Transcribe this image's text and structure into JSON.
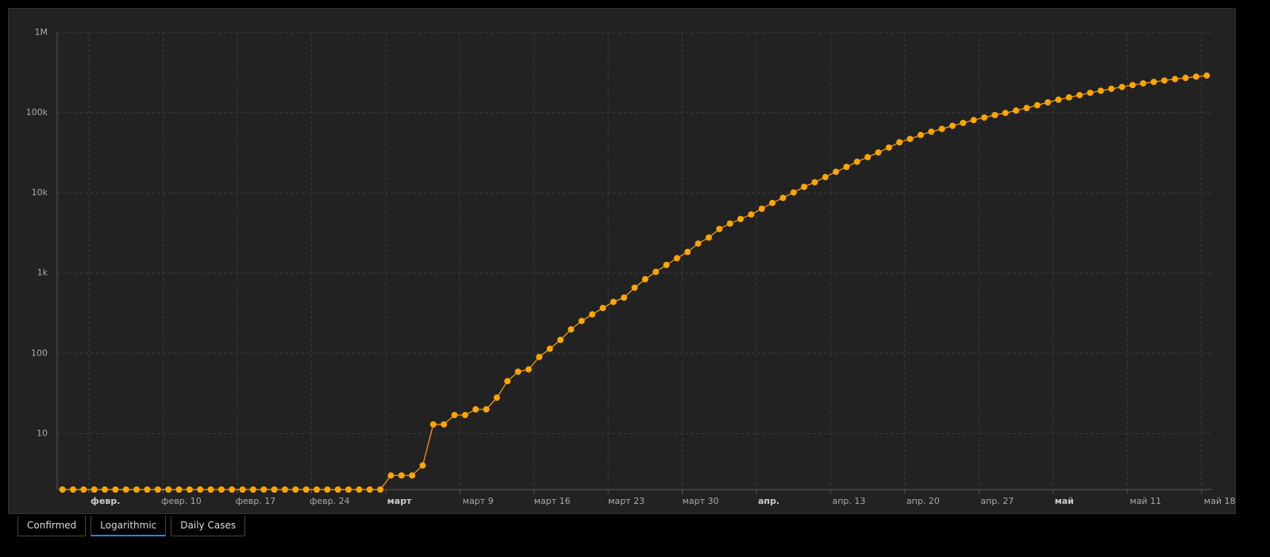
{
  "chart_data": {
    "type": "line",
    "log_scale": true,
    "grid": true,
    "color": "#ffa500",
    "x": [
      "01-31",
      "02-01",
      "02-02",
      "02-03",
      "02-04",
      "02-05",
      "02-06",
      "02-07",
      "02-08",
      "02-09",
      "02-10",
      "02-11",
      "02-12",
      "02-13",
      "02-14",
      "02-15",
      "02-16",
      "02-17",
      "02-18",
      "02-19",
      "02-20",
      "02-21",
      "02-22",
      "02-23",
      "02-24",
      "02-25",
      "02-26",
      "02-27",
      "02-28",
      "02-29",
      "03-01",
      "03-02",
      "03-03",
      "03-04",
      "03-05",
      "03-06",
      "03-07",
      "03-08",
      "03-09",
      "03-10",
      "03-11",
      "03-12",
      "03-13",
      "03-14",
      "03-15",
      "03-16",
      "03-17",
      "03-18",
      "03-19",
      "03-20",
      "03-21",
      "03-22",
      "03-23",
      "03-24",
      "03-25",
      "03-26",
      "03-27",
      "03-28",
      "03-29",
      "03-30",
      "03-31",
      "04-01",
      "04-02",
      "04-03",
      "04-04",
      "04-05",
      "04-06",
      "04-07",
      "04-08",
      "04-09",
      "04-10",
      "04-11",
      "04-12",
      "04-13",
      "04-14",
      "04-15",
      "04-16",
      "04-17",
      "04-18",
      "04-19",
      "04-20",
      "04-21",
      "04-22",
      "04-23",
      "04-24",
      "04-25",
      "04-26",
      "04-27",
      "04-28",
      "04-29",
      "04-30",
      "05-01",
      "05-02",
      "05-03",
      "05-04",
      "05-05",
      "05-06",
      "05-07",
      "05-08",
      "05-09",
      "05-10",
      "05-11",
      "05-12",
      "05-13",
      "05-14",
      "05-15",
      "05-16",
      "05-17",
      "05-18"
    ],
    "values": [
      2,
      2,
      2,
      2,
      2,
      2,
      2,
      2,
      2,
      2,
      2,
      2,
      2,
      2,
      2,
      2,
      2,
      2,
      2,
      2,
      2,
      2,
      2,
      2,
      2,
      2,
      2,
      2,
      2,
      2,
      2,
      3,
      3,
      3,
      4,
      13,
      13,
      17,
      17,
      20,
      20,
      28,
      45,
      59,
      63,
      90,
      114,
      147,
      199,
      253,
      306,
      367,
      438,
      495,
      658,
      840,
      1036,
      1264,
      1534,
      1836,
      2337,
      2777,
      3548,
      4149,
      4731,
      5389,
      6343,
      7497,
      8672,
      10131,
      11917,
      13584,
      15770,
      18328,
      21102,
      24490,
      27938,
      32008,
      36793,
      42853,
      47121,
      52763,
      57999,
      62773,
      68622,
      74588,
      80949,
      87147,
      93558,
      99399,
      106498,
      114431,
      124054,
      134686,
      145268,
      155370,
      165929,
      177160,
      187859,
      198676,
      209688,
      221344,
      232243,
      242271,
      252245,
      262843,
      272043,
      281752,
      290678
    ],
    "xlim": [
      "01-31",
      "05-19"
    ],
    "xticks": [
      {
        "value": "02-03",
        "label": "февр."
      },
      {
        "value": "02-10",
        "label": "февр. 10"
      },
      {
        "value": "02-17",
        "label": "февр. 17"
      },
      {
        "value": "02-24",
        "label": "февр. 24"
      },
      {
        "value": "03-02",
        "label": "март"
      },
      {
        "value": "03-09",
        "label": "март 9"
      },
      {
        "value": "03-16",
        "label": "март 16"
      },
      {
        "value": "03-23",
        "label": "март 23"
      },
      {
        "value": "03-30",
        "label": "март 30"
      },
      {
        "value": "04-06",
        "label": "апр."
      },
      {
        "value": "04-13",
        "label": "апр. 13"
      },
      {
        "value": "04-20",
        "label": "апр. 20"
      },
      {
        "value": "04-27",
        "label": "апр. 27"
      },
      {
        "value": "05-04",
        "label": "май"
      },
      {
        "value": "05-11",
        "label": "май 11"
      },
      {
        "value": "05-18",
        "label": "май 18"
      }
    ],
    "ylim": [
      2,
      1000000
    ],
    "yticks": [
      10,
      100,
      {
        "value": 1000,
        "label": "1k"
      },
      {
        "value": 10000,
        "label": "10k"
      },
      {
        "value": 100000,
        "label": "100k"
      },
      {
        "value": 1000000,
        "label": "1M"
      }
    ]
  },
  "tabs": [
    "Confirmed",
    "Logarithmic",
    "Daily Cases"
  ],
  "active_tab": 1
}
